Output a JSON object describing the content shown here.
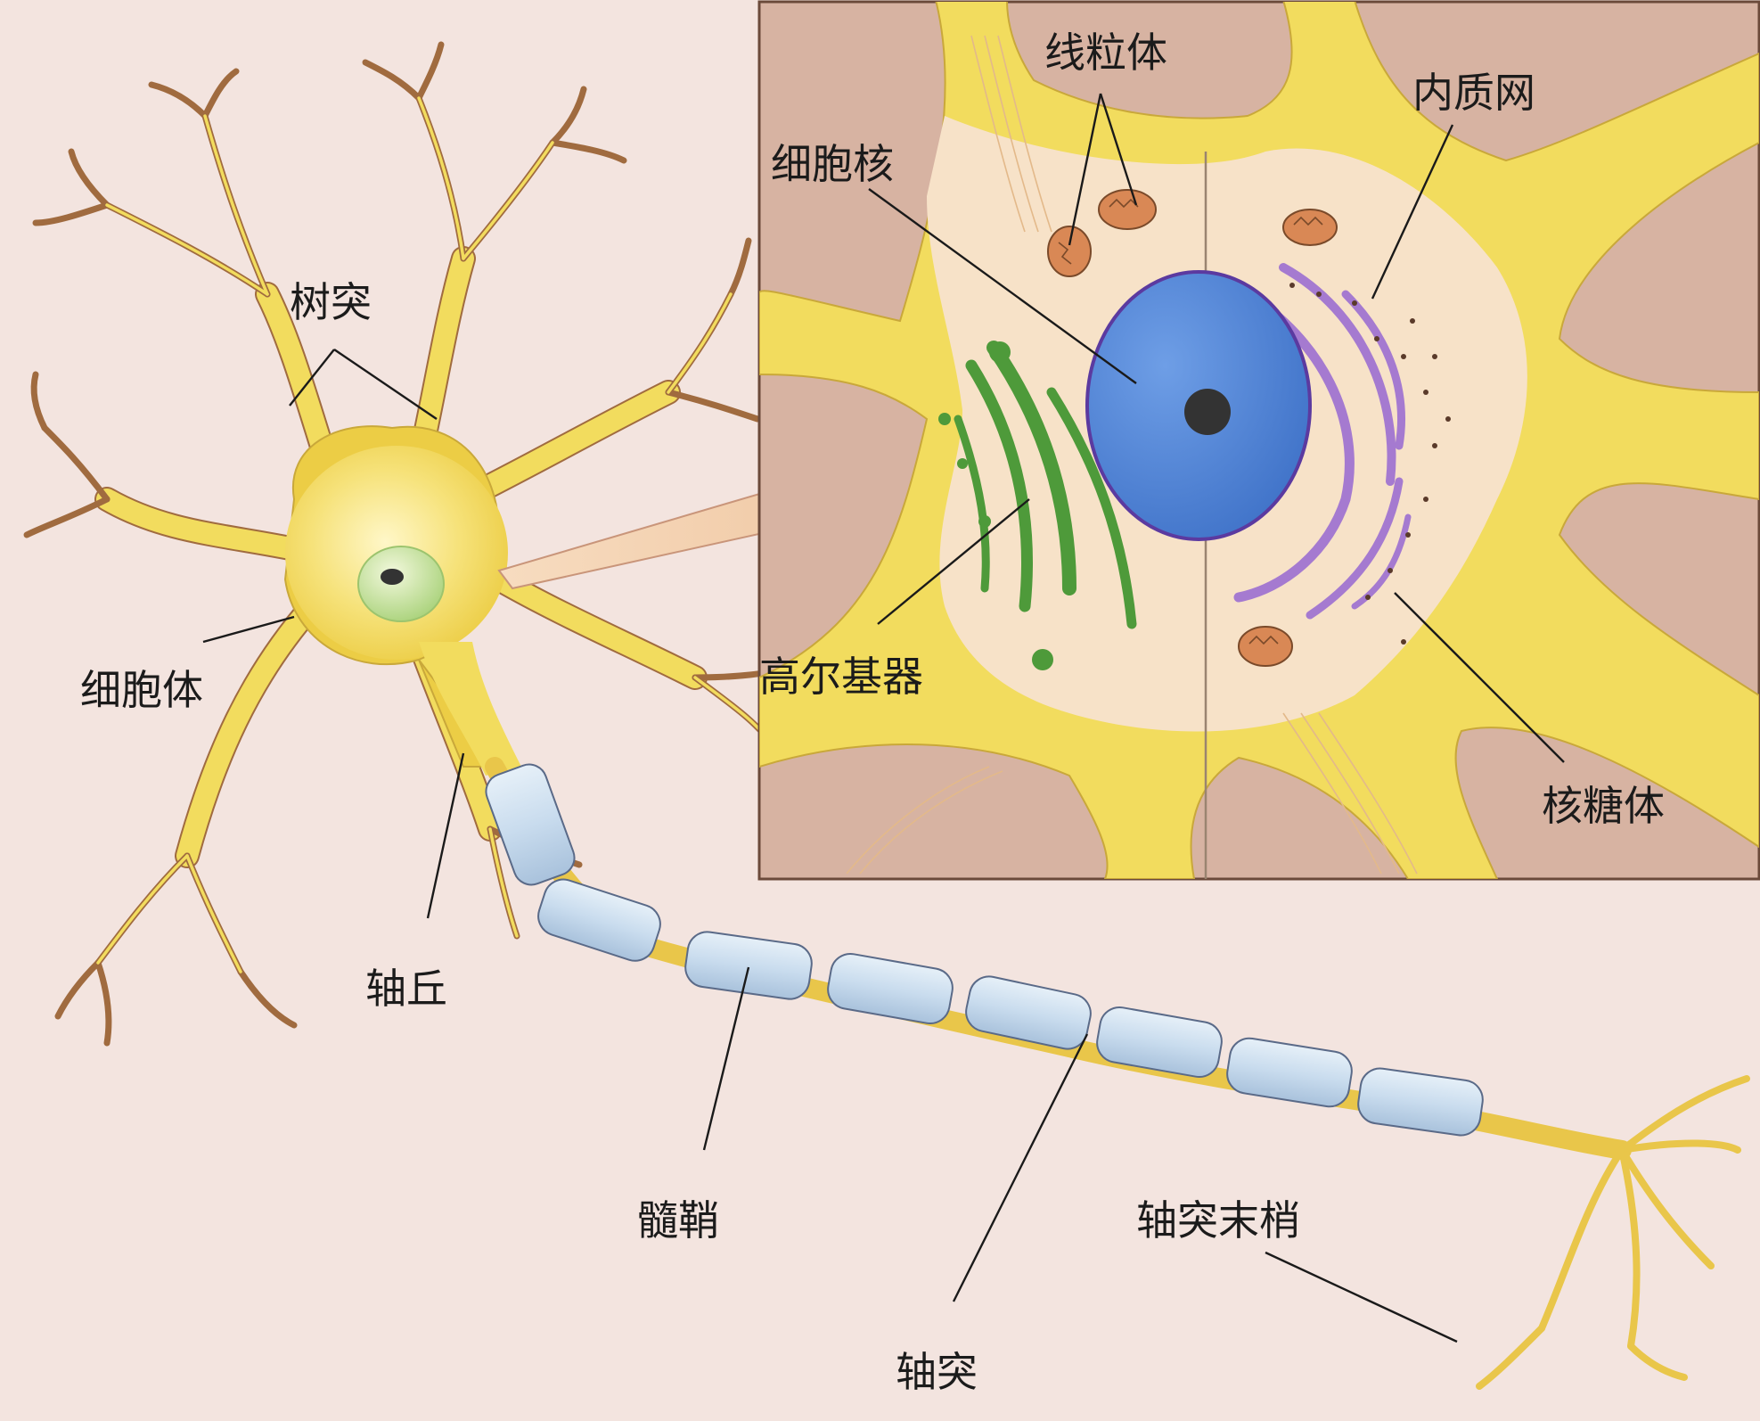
{
  "labels": {
    "dendrite": "树突",
    "cell_body": "细胞体",
    "axon_hillock": "轴丘",
    "myelin_sheath": "髓鞘",
    "axon": "轴突",
    "axon_terminal": "轴突末梢",
    "mitochondria": "线粒体",
    "nucleus": "细胞核",
    "endoplasmic_reticulum": "内质网",
    "golgi_apparatus": "高尔基器",
    "ribosome": "核糖体"
  },
  "colors": {
    "background": "#f3e4df",
    "inset_background": "#d7b3a2",
    "neuron_yellow": "#f2dc5e",
    "dendrite_outline": "#a06b3f",
    "cytoplasm": "#f7e2c8",
    "nucleus_blue": "#4f86d9",
    "nucleus_border": "#5b3aa0",
    "nucleolus": "#333333",
    "golgi_green": "#4e9a3a",
    "er_purple": "#a57ad0",
    "mitochondria": "#d98855",
    "myelin": "#cfe0ef",
    "nucleus_cell": "#b7d98a"
  }
}
